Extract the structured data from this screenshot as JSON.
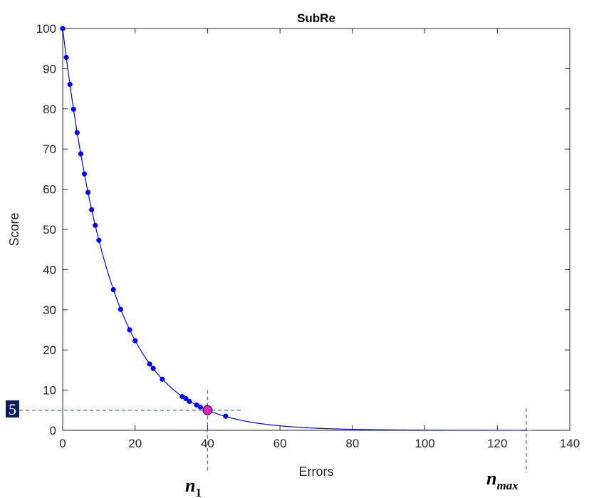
{
  "chart_data": {
    "type": "scatter",
    "title": "SubRe",
    "xlabel": "Errors",
    "ylabel": "Score",
    "xlim": [
      0,
      140
    ],
    "ylim": [
      0,
      100
    ],
    "xticks": [
      "0",
      "20",
      "40",
      "60",
      "80",
      "100",
      "120",
      "140"
    ],
    "yticks": [
      "0",
      "10",
      "20",
      "30",
      "40",
      "50",
      "60",
      "70",
      "80",
      "90",
      "100"
    ],
    "grid": false,
    "series": [
      {
        "points": [
          [
            0,
            100
          ],
          [
            1,
            92.8
          ],
          [
            2,
            86.1
          ],
          [
            3,
            79.9
          ],
          [
            4,
            74.1
          ],
          [
            5,
            68.8
          ],
          [
            6,
            63.8
          ],
          [
            7,
            59.2
          ],
          [
            8,
            54.9
          ],
          [
            9,
            51.0
          ],
          [
            10,
            47.3
          ],
          [
            14,
            35.0
          ],
          [
            16,
            30.1
          ],
          [
            18.5,
            25.0
          ],
          [
            20,
            22.3
          ],
          [
            24,
            16.5
          ],
          [
            25,
            15.4
          ],
          [
            27.5,
            12.7
          ],
          [
            33,
            8.4
          ],
          [
            34,
            7.9
          ],
          [
            35,
            7.2
          ],
          [
            37,
            6.3
          ],
          [
            38,
            5.8
          ],
          [
            45,
            3.5
          ]
        ],
        "color": "#0000ff"
      }
    ],
    "curve": {
      "model": "exponential-decay",
      "a": 100,
      "k": 0.0749,
      "x_end": 128,
      "color": "#0000ff"
    },
    "highlight": {
      "x": 40,
      "y": 5,
      "fill": "#e020c8"
    },
    "reference_lines": {
      "x_n1": 40,
      "x_nmax": 128,
      "y_level": 5,
      "color": "#4a7cc4"
    },
    "annotations": {
      "level_label": "5",
      "n1_base": "n",
      "n1_sub": "1",
      "nmax_base": "n",
      "nmax_sub": "max"
    }
  }
}
